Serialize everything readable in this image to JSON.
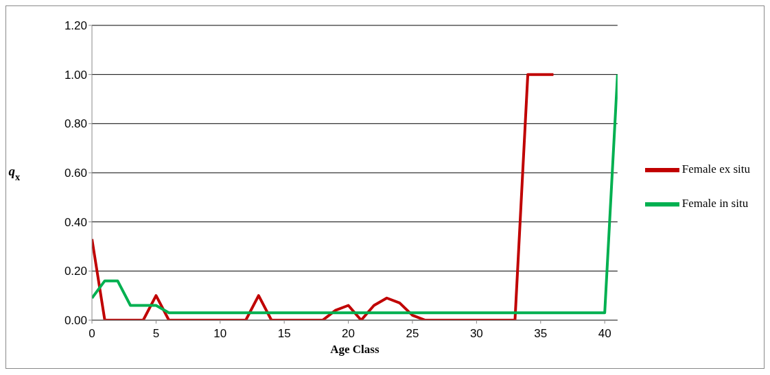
{
  "chart_data": {
    "type": "line",
    "xlabel": "Age Class",
    "ylabel": "q$_{x}$",
    "xlim": [
      0,
      41
    ],
    "xticks": [
      0,
      5,
      10,
      15,
      20,
      25,
      30,
      35,
      40
    ],
    "ylim": [
      0,
      1.2
    ],
    "yticks": [
      {
        "value": 0,
        "label": "0.00"
      },
      {
        "value": 0.2,
        "label": "0.20"
      },
      {
        "value": 0.4,
        "label": "0.40"
      },
      {
        "value": 0.6,
        "label": "0.60"
      },
      {
        "value": 0.8,
        "label": "0.80"
      },
      {
        "value": 1,
        "label": "1.00"
      },
      {
        "value": 1.2,
        "label": "1.20"
      }
    ],
    "grid": "y",
    "legend": "right",
    "marker": "none",
    "line_style": "solid",
    "series": [
      {
        "name": "Female ex situ",
        "color": "#c00000",
        "x": [
          0,
          1,
          2,
          3,
          4,
          5,
          6,
          7,
          8,
          9,
          10,
          11,
          12,
          13,
          14,
          15,
          16,
          17,
          18,
          19,
          20,
          21,
          22,
          23,
          24,
          25,
          26,
          27,
          28,
          29,
          30,
          31,
          32,
          33,
          34,
          35,
          36
        ],
        "values": [
          0.33,
          0,
          0,
          0,
          0,
          0.1,
          0,
          0,
          0,
          0,
          0,
          0,
          0,
          0.1,
          0,
          0,
          0,
          0,
          0,
          0.04,
          0.06,
          0,
          0.06,
          0.09,
          0.07,
          0.02,
          0,
          0,
          0,
          0,
          0,
          0,
          0,
          0,
          1,
          1,
          1
        ]
      },
      {
        "name": "Female in situ",
        "color": "#00b050",
        "x": [
          0,
          1,
          2,
          3,
          4,
          5,
          6,
          7,
          8,
          9,
          10,
          11,
          12,
          13,
          14,
          15,
          16,
          17,
          18,
          19,
          20,
          21,
          22,
          23,
          24,
          25,
          26,
          27,
          28,
          29,
          30,
          31,
          32,
          33,
          34,
          35,
          36,
          37,
          38,
          39,
          40,
          41
        ],
        "values": [
          0.09,
          0.16,
          0.16,
          0.06,
          0.06,
          0.06,
          0.03,
          0.03,
          0.03,
          0.03,
          0.03,
          0.03,
          0.03,
          0.03,
          0.03,
          0.03,
          0.03,
          0.03,
          0.03,
          0.03,
          0.03,
          0.03,
          0.03,
          0.03,
          0.03,
          0.03,
          0.03,
          0.03,
          0.03,
          0.03,
          0.03,
          0.03,
          0.03,
          0.03,
          0.03,
          0.03,
          0.03,
          0.03,
          0.03,
          0.03,
          0.03,
          1
        ]
      }
    ]
  }
}
